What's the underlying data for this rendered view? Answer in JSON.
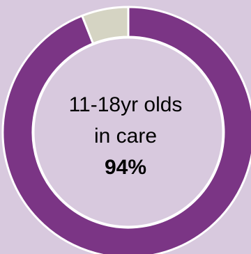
{
  "chart_data": {
    "type": "pie",
    "style": "donut",
    "categories": [
      "11-18yr olds in care",
      ""
    ],
    "values": [
      94,
      6
    ],
    "colors": [
      "#7b3585",
      "#d5d4c3"
    ],
    "center_text": {
      "line1": "11-18yr olds",
      "line2": "in care",
      "value": "94%"
    }
  },
  "colors": {
    "background": "#d8c9de",
    "segment_stroke": "#ffffff"
  }
}
